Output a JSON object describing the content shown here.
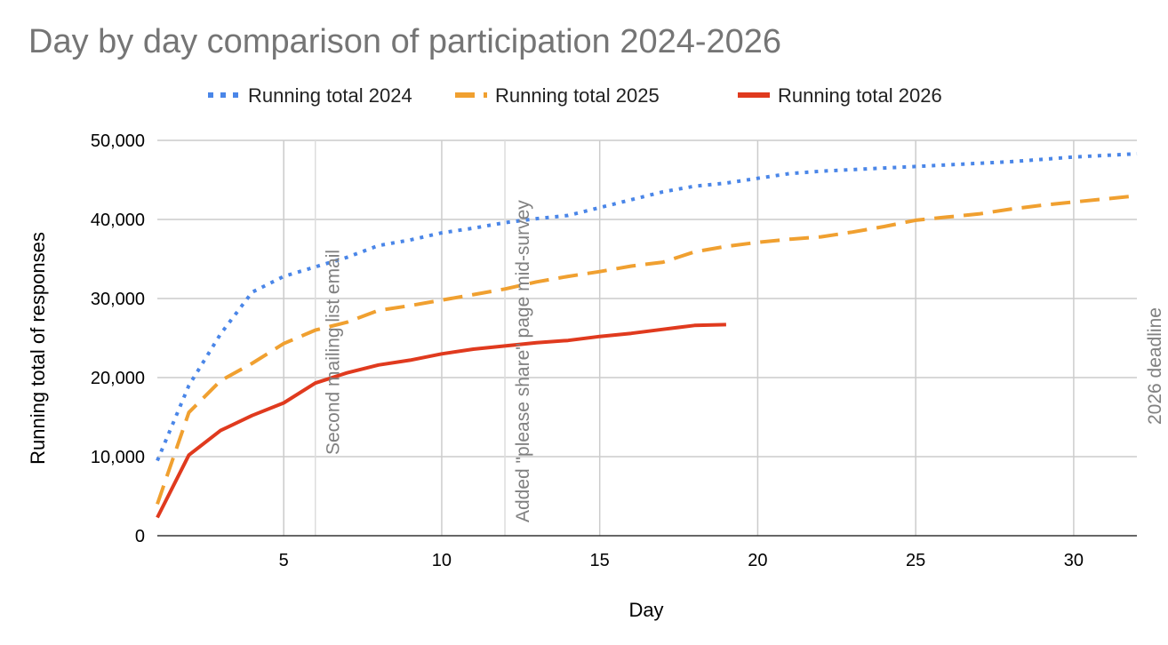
{
  "chart_data": {
    "type": "line",
    "title": "Day by day comparison of participation 2024-2026",
    "xlabel": "Day",
    "ylabel": "Running total of responses",
    "xlim": [
      1,
      32
    ],
    "ylim": [
      0,
      50000
    ],
    "xticks": [
      5,
      10,
      15,
      20,
      25,
      30
    ],
    "xtick_labels": [
      "5",
      "10",
      "15",
      "20",
      "25",
      "30"
    ],
    "yticks": [
      0,
      10000,
      20000,
      30000,
      40000,
      50000
    ],
    "ytick_labels": [
      "0",
      "10,000",
      "20,000",
      "30,000",
      "40,000",
      "50,000"
    ],
    "grid": true,
    "legend_position": "top",
    "series": [
      {
        "name": "Running total 2024",
        "color": "#4a86e8",
        "style": "dotted",
        "x": [
          1,
          2,
          3,
          4,
          5,
          6,
          7,
          8,
          9,
          10,
          11,
          12,
          13,
          14,
          15,
          16,
          17,
          18,
          19,
          20,
          21,
          22,
          23,
          24,
          25,
          26,
          27,
          28,
          29,
          30,
          31,
          32
        ],
        "values": [
          9500,
          19000,
          25500,
          30800,
          32800,
          34000,
          35200,
          36700,
          37400,
          38300,
          38900,
          39600,
          40100,
          40500,
          41500,
          42500,
          43500,
          44200,
          44600,
          45200,
          45800,
          46100,
          46300,
          46500,
          46700,
          46900,
          47100,
          47300,
          47600,
          47900,
          48100,
          48300
        ]
      },
      {
        "name": "Running total 2025",
        "color": "#f0a030",
        "style": "dashed",
        "x": [
          1,
          2,
          3,
          4,
          5,
          6,
          7,
          8,
          9,
          10,
          11,
          12,
          13,
          14,
          15,
          16,
          17,
          18,
          19,
          20,
          21,
          22,
          23,
          24,
          25,
          26,
          27,
          28,
          29,
          30,
          31,
          32
        ],
        "values": [
          4000,
          15600,
          19600,
          21800,
          24300,
          26000,
          27000,
          28500,
          29100,
          29800,
          30500,
          31200,
          32100,
          32800,
          33400,
          34100,
          34600,
          35900,
          36600,
          37100,
          37500,
          37800,
          38400,
          39100,
          39900,
          40300,
          40700,
          41300,
          41800,
          42200,
          42600,
          43000
        ]
      },
      {
        "name": "Running total 2026",
        "color": "#e03a1e",
        "style": "solid",
        "x": [
          1,
          2,
          3,
          4,
          5,
          6,
          7,
          8,
          9,
          10,
          11,
          12,
          13,
          14,
          15,
          16,
          17,
          18,
          19
        ],
        "values": [
          2300,
          10200,
          13300,
          15200,
          16800,
          19300,
          20600,
          21600,
          22200,
          23000,
          23600,
          24000,
          24400,
          24700,
          25200,
          25600,
          26100,
          26600,
          26700
        ]
      }
    ],
    "annotations": [
      {
        "x": 6.0,
        "text": "Second mailing list email"
      },
      {
        "x": 12.0,
        "text": "Added \"please share\" page mid-survey"
      },
      {
        "x": 32,
        "text": "2026 deadline"
      }
    ]
  }
}
